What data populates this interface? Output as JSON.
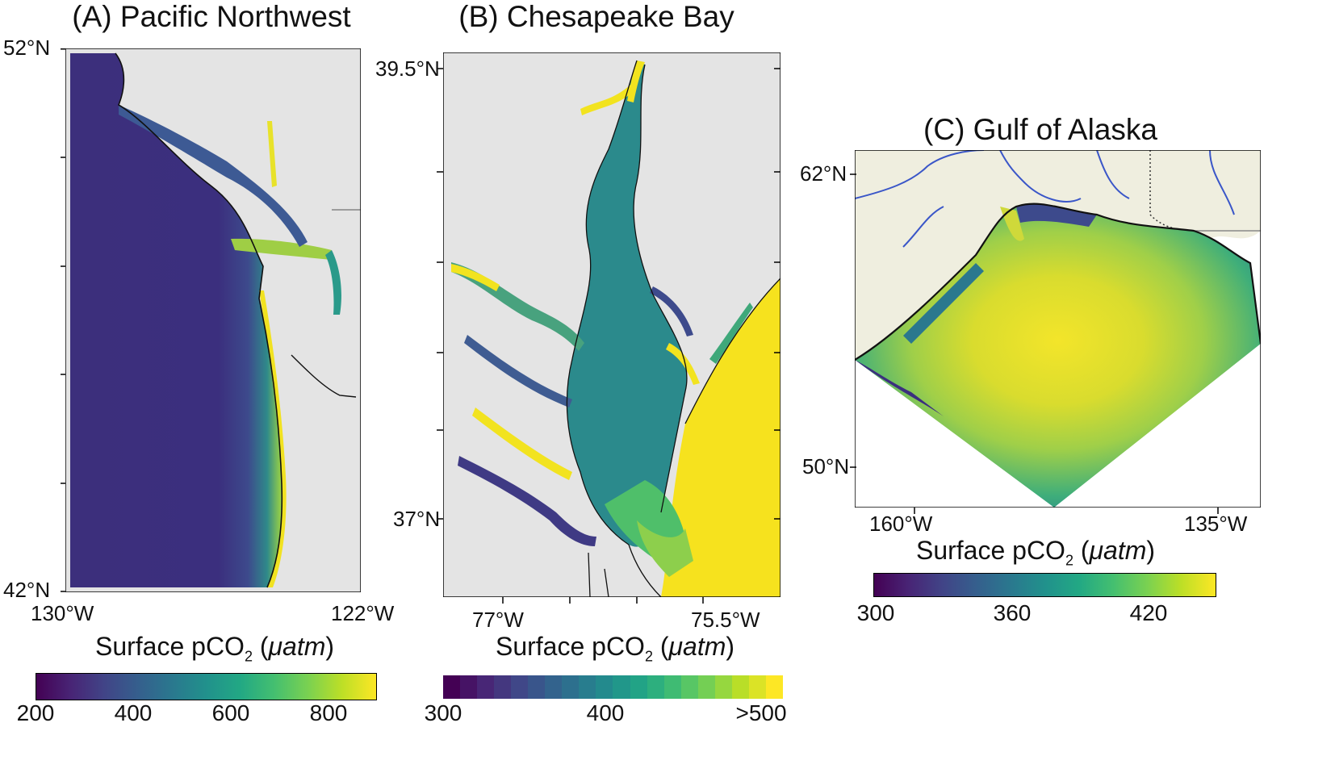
{
  "panels": {
    "a": {
      "title": "(A) Pacific Northwest",
      "lat_top": "52°N",
      "lat_bottom": "42°N",
      "lon_left": "130°W",
      "lon_right": "122°W",
      "colorbar": {
        "label_prefix": "Surface pCO",
        "label_sub": "2",
        "label_unit": "μatm",
        "ticks": [
          "200",
          "400",
          "600",
          "800"
        ],
        "range": [
          200,
          900
        ]
      }
    },
    "b": {
      "title": "(B) Chesapeake Bay",
      "lat_top": "39.5°N",
      "lat_bottom": "37°N",
      "lon_left": "77°W",
      "lon_right": "75.5°W",
      "colorbar": {
        "label_prefix": "Surface pCO",
        "label_sub": "2",
        "label_unit": "μatm",
        "ticks": [
          "300",
          "400",
          ">500"
        ],
        "range": [
          300,
          500
        ],
        "levels": 20
      }
    },
    "c": {
      "title": "(C) Gulf of Alaska",
      "lat_top": "62°N",
      "lat_bottom": "50°N",
      "lon_left": "160°W",
      "lon_right": "135°W",
      "colorbar": {
        "label_prefix": "Surface pCO",
        "label_sub": "2",
        "label_unit": "μatm",
        "ticks": [
          "300",
          "360",
          "420"
        ],
        "range": [
          300,
          450
        ]
      }
    }
  },
  "colors": {
    "land": "#e4e4e4",
    "land_alaska": "#efeedf",
    "rivers": "#3a56c8",
    "viridis": [
      "#440154",
      "#482475",
      "#414487",
      "#355f8d",
      "#2a788e",
      "#21918c",
      "#22a884",
      "#44bf70",
      "#7ad151",
      "#bddf26",
      "#fde725"
    ]
  }
}
